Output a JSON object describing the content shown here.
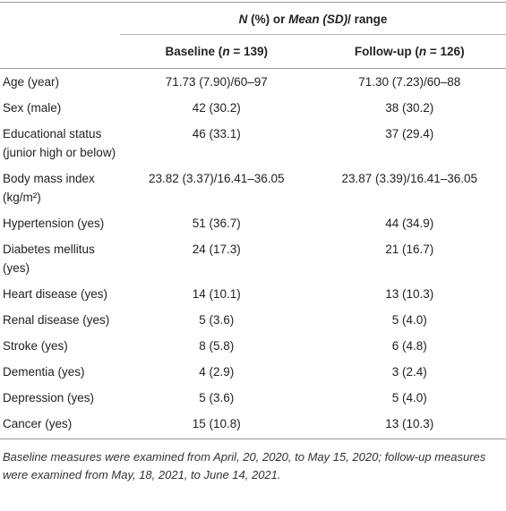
{
  "header": {
    "group": [
      "N",
      " (%) or ",
      "Mean (SD)",
      "/ range"
    ],
    "baseline": [
      "Baseline (",
      "n",
      " = 139)"
    ],
    "followup": [
      "Follow-up (",
      "n",
      " = 126)"
    ]
  },
  "table": {
    "rows": [
      [
        "Age (year)",
        "71.73 (7.90)/60–97",
        "71.30 (7.23)/60–88"
      ],
      [
        "Sex (male)",
        "42 (30.2)",
        "38 (30.2)"
      ],
      [
        "Educational status (junior high or below)",
        "46 (33.1)",
        "37 (29.4)"
      ],
      [
        "Body mass index (kg/m²)",
        "23.82 (3.37)/16.41–36.05",
        "23.87 (3.39)/16.41–36.05"
      ],
      [
        "Hypertension (yes)",
        "51 (36.7)",
        "44 (34.9)"
      ],
      [
        "Diabetes mellitus (yes)",
        "24 (17.3)",
        "21 (16.7)"
      ],
      [
        "Heart disease (yes)",
        "14 (10.1)",
        "13 (10.3)"
      ],
      [
        "Renal disease (yes)",
        "5 (3.6)",
        "5 (4.0)"
      ],
      [
        "Stroke (yes)",
        "8 (5.8)",
        "6 (4.8)"
      ],
      [
        "Dementia (yes)",
        "4 (2.9)",
        "3 (2.4)"
      ],
      [
        "Depression (yes)",
        "5 (3.6)",
        "5 (4.0)"
      ],
      [
        "Cancer (yes)",
        "15 (10.8)",
        "13 (10.3)"
      ]
    ]
  },
  "footnote": "Baseline measures were examined from April, 20, 2020, to May 15, 2020; follow-up measures were examined from May, 18, 2021, to June 14, 2021."
}
